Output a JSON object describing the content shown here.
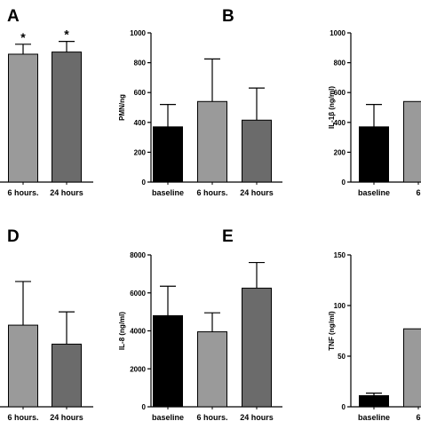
{
  "chart_data": [
    {
      "panel": "A",
      "type": "bar",
      "categories": [
        "6 hours.",
        "24 hours"
      ],
      "values": [
        900,
        915
      ],
      "errors": [
        70,
        75
      ],
      "colors": [
        "#9a9a9a",
        "#6b6b6b"
      ],
      "significance": [
        "*",
        "*"
      ],
      "ylabel": "",
      "ylim": [
        0,
        1200
      ],
      "yticks": []
    },
    {
      "panel": "B",
      "type": "bar",
      "categories": [
        "baseline",
        "6 hours.",
        "24 hours"
      ],
      "values": [
        370,
        540,
        415
      ],
      "errors": [
        150,
        285,
        215
      ],
      "colors": [
        "#000000",
        "#9a9a9a",
        "#6b6b6b"
      ],
      "ylabel": "PMN/ng",
      "ylim": [
        0,
        1000
      ],
      "yticks": [
        "0",
        "200",
        "400",
        "600",
        "800",
        "1000"
      ]
    },
    {
      "panel": "C",
      "type": "bar",
      "categories": [
        "baseline",
        "6"
      ],
      "values": [
        370,
        540
      ],
      "errors": [
        150,
        0
      ],
      "colors": [
        "#000000",
        "#9a9a9a"
      ],
      "ylabel": "IL-1β (ng/ml)",
      "ylim": [
        0,
        1000
      ],
      "yticks": [
        "0",
        "200",
        "400",
        "600",
        "800",
        "1000"
      ]
    },
    {
      "panel": "D",
      "type": "bar",
      "categories": [
        "6 hours.",
        "24 hours"
      ],
      "values": [
        4300,
        3300
      ],
      "errors": [
        2300,
        1700
      ],
      "colors": [
        "#9a9a9a",
        "#6b6b6b"
      ],
      "ylabel": "",
      "ylim": [
        0,
        8000
      ],
      "yticks": []
    },
    {
      "panel": "E",
      "type": "bar",
      "categories": [
        "baseline",
        "6 hours.",
        "24 hours"
      ],
      "values": [
        4800,
        3950,
        6250
      ],
      "errors": [
        1550,
        1000,
        1350
      ],
      "colors": [
        "#000000",
        "#9a9a9a",
        "#6b6b6b"
      ],
      "ylabel": "IL-8 (ng/ml)",
      "ylim": [
        0,
        8000
      ],
      "yticks": [
        "0",
        "2000",
        "4000",
        "6000",
        "8000"
      ]
    },
    {
      "panel": "F",
      "type": "bar",
      "categories": [
        "baseline",
        "6"
      ],
      "values": [
        11,
        77
      ],
      "errors": [
        2.5,
        0
      ],
      "colors": [
        "#000000",
        "#9a9a9a"
      ],
      "ylabel": "TNF (ng/ml)",
      "ylim": [
        0,
        150
      ],
      "yticks": [
        "0",
        "50",
        "100",
        "150"
      ]
    }
  ]
}
